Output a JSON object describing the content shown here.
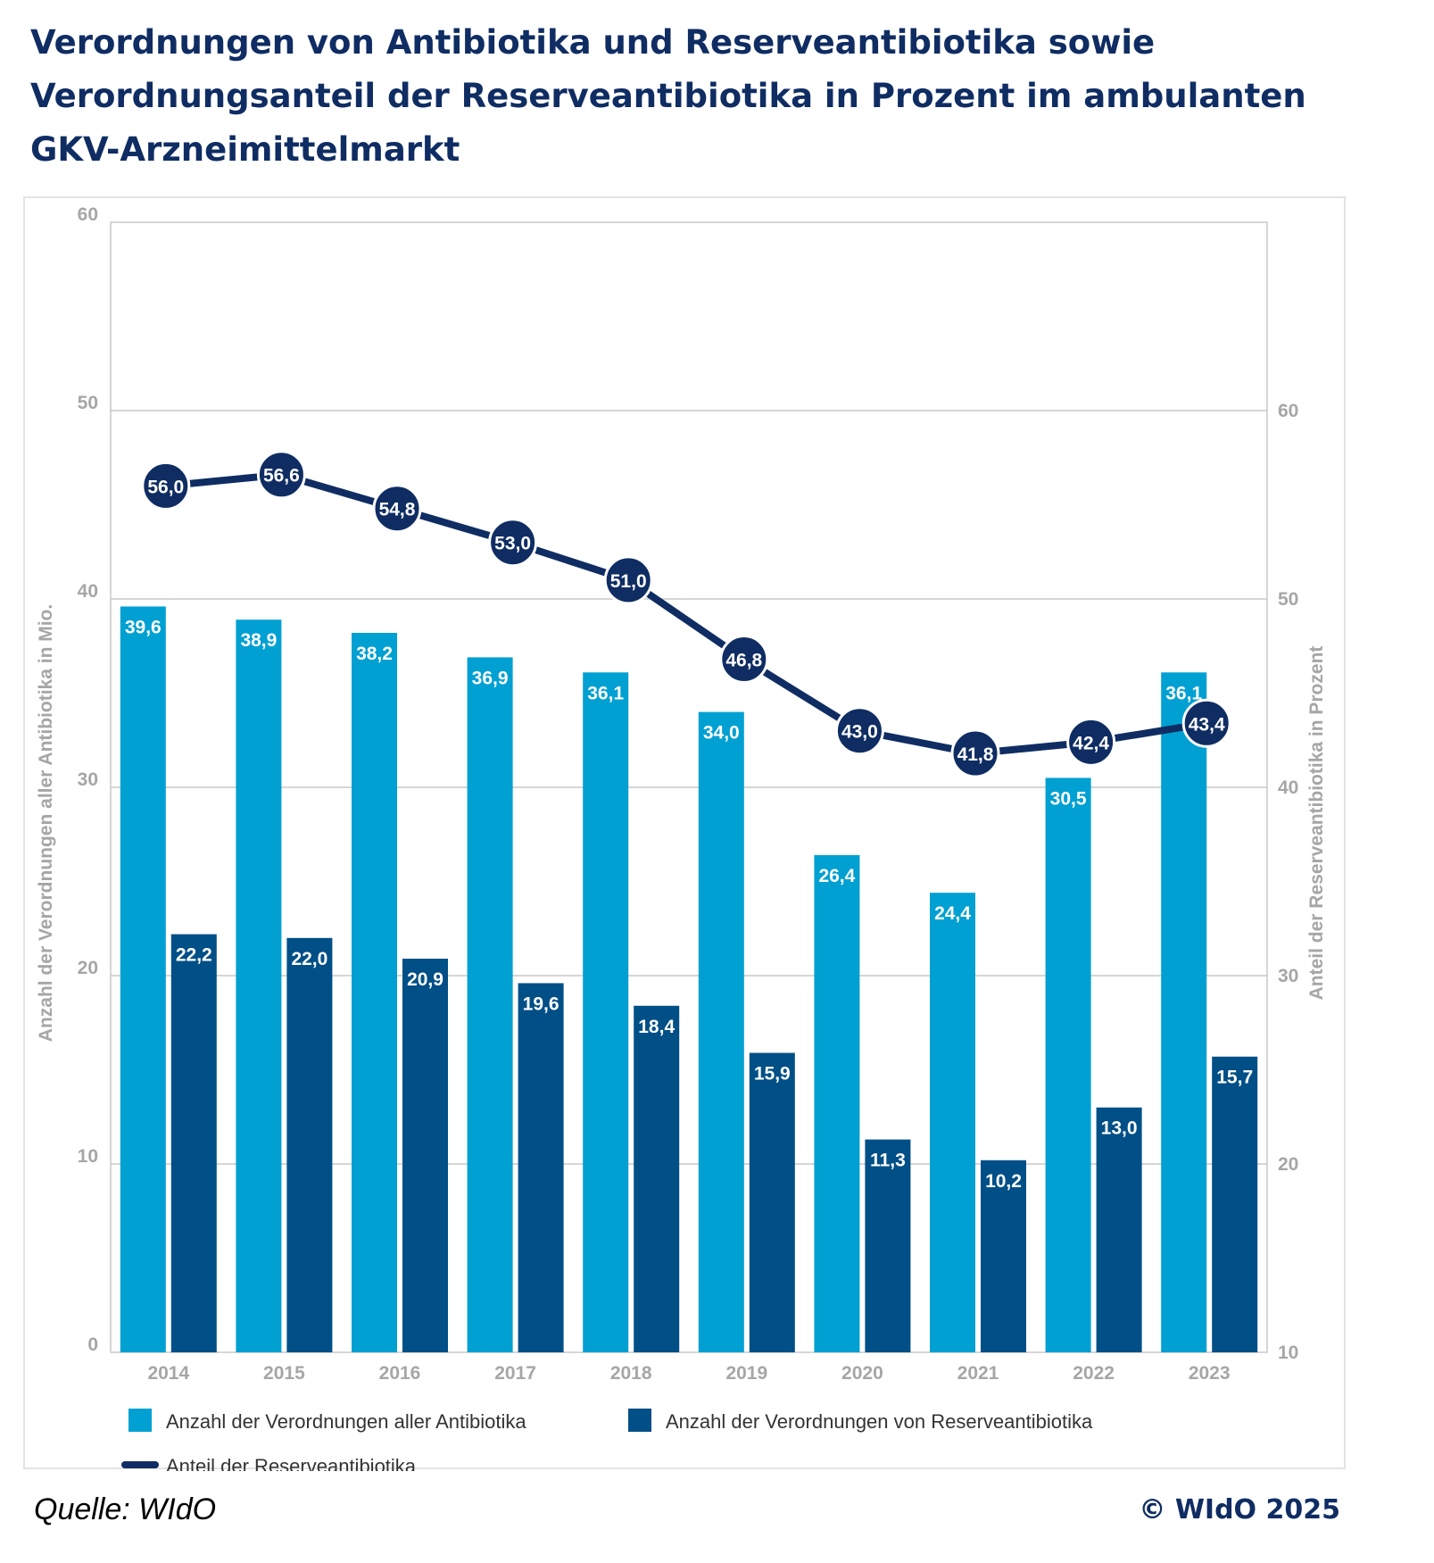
{
  "title_lines": [
    "Verordnungen von Antibiotika und Reserveantibiotika sowie",
    "Verordnungsanteil der Reserveantibiotika in Prozent im ambulanten",
    "GKV-Arzneimittelmarkt"
  ],
  "source": "Quelle: WIdO",
  "copyright": "© WIdO 2025",
  "colors": {
    "bar_all": "#00a0d2",
    "bar_reserve": "#004f86",
    "line": "#0f2d63",
    "axis_text": "#a6a6a6",
    "grid": "#c8c8c8"
  },
  "chart_data": {
    "type": "bar+line",
    "categories": [
      "2014",
      "2015",
      "2016",
      "2017",
      "2018",
      "2019",
      "2020",
      "2021",
      "2022",
      "2023"
    ],
    "series": [
      {
        "name": "Anzahl der Verordnungen aller Antibiotika",
        "type": "bar",
        "axis": "left",
        "values": [
          39.6,
          38.9,
          38.2,
          36.9,
          36.1,
          34.0,
          26.4,
          24.4,
          30.5,
          36.1
        ],
        "labels": [
          "39,6",
          "38,9",
          "38,2",
          "36,9",
          "36,1",
          "34,0",
          "26,4",
          "24,4",
          "30,5",
          "36,1"
        ]
      },
      {
        "name": "Anzahl der Verordnungen von Reserveantibiotika",
        "type": "bar",
        "axis": "left",
        "values": [
          22.2,
          22.0,
          20.9,
          19.6,
          18.4,
          15.9,
          11.3,
          10.2,
          13.0,
          15.7
        ],
        "labels": [
          "22,2",
          "22,0",
          "20,9",
          "19,6",
          "18,4",
          "15,9",
          "11,3",
          "10,2",
          "13,0",
          "15,7"
        ]
      },
      {
        "name": "Anteil der Reserveantibiotika",
        "type": "line",
        "axis": "right",
        "values": [
          56.0,
          56.6,
          54.8,
          53.0,
          51.0,
          46.8,
          43.0,
          41.8,
          42.4,
          43.4
        ],
        "labels": [
          "56,0",
          "56,6",
          "54,8",
          "53,0",
          "51,0",
          "46,8",
          "43,0",
          "41,8",
          "42,4",
          "43,4"
        ]
      }
    ],
    "y_left": {
      "label": "Anzahl der Verordnungen aller Antibiotika in Mio.",
      "range": [
        0,
        60
      ],
      "ticks": [
        "0",
        "10",
        "20",
        "30",
        "40",
        "50",
        "60"
      ]
    },
    "y_right": {
      "label": "Anteil der Reserveantibiotika in Prozent",
      "range": [
        10,
        70
      ],
      "ticks": [
        "10",
        "20",
        "30",
        "40",
        "50",
        "60"
      ]
    },
    "grid": true,
    "legend_position": "bottom"
  }
}
